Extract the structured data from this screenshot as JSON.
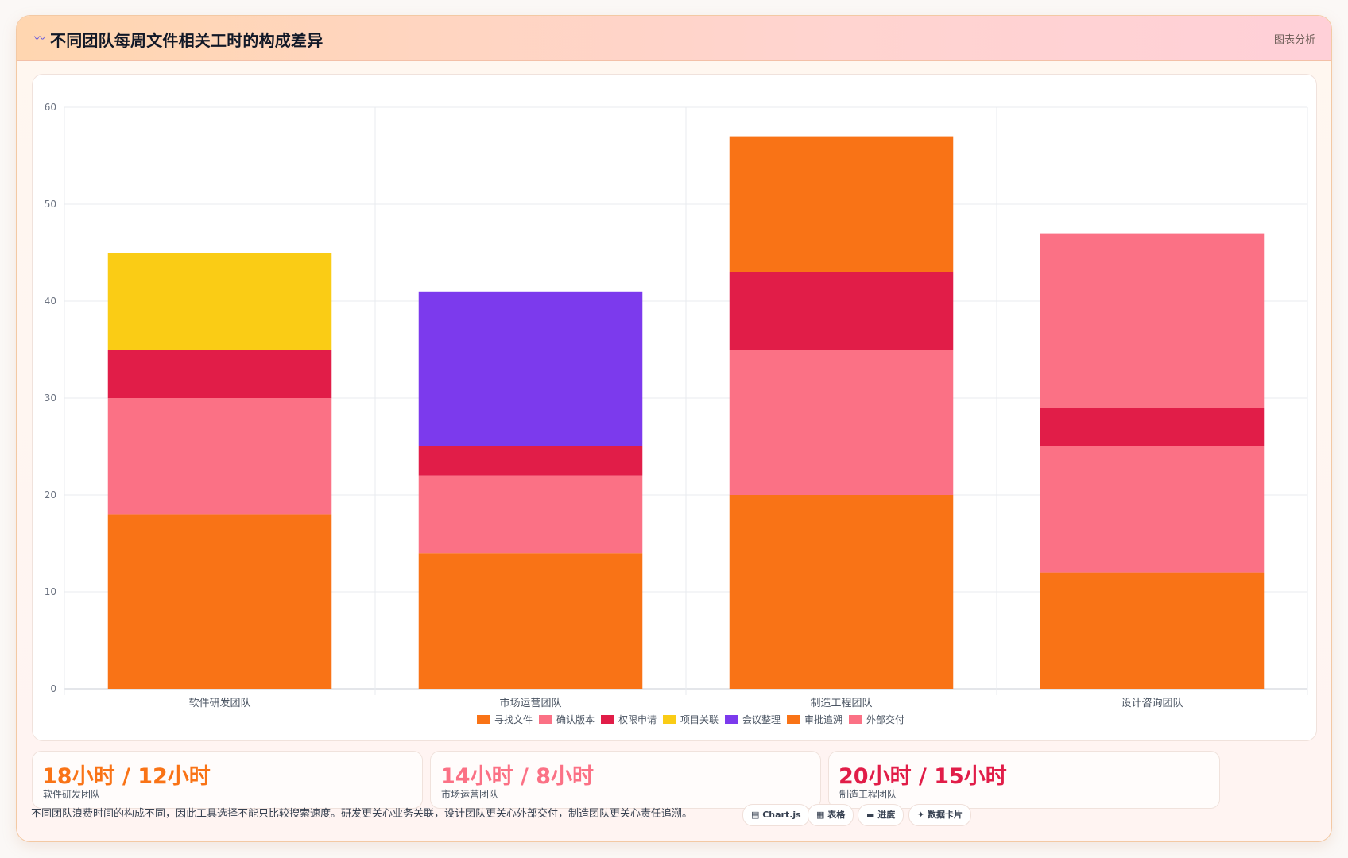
{
  "header": {
    "icon": "wave-icon",
    "title": "不同团队每周文件相关工时的构成差异",
    "tag": "图表分析"
  },
  "chart_data": {
    "type": "bar",
    "stacked": true,
    "categories": [
      "软件研发团队",
      "市场运营团队",
      "制造工程团队",
      "设计咨询团队"
    ],
    "ylim": [
      0,
      60
    ],
    "yticks": [
      0,
      10,
      20,
      30,
      40,
      50,
      60
    ],
    "legend_position": "bottom",
    "grid": true,
    "series": [
      {
        "name": "寻找文件",
        "color": "#f97316",
        "values": [
          18,
          14,
          20,
          12
        ]
      },
      {
        "name": "确认版本",
        "color": "#fb7185",
        "values": [
          12,
          8,
          15,
          13
        ]
      },
      {
        "name": "权限申请",
        "color": "#e11d48",
        "values": [
          5,
          3,
          8,
          4
        ]
      },
      {
        "name": "项目关联",
        "color": "#facc15",
        "values": [
          10,
          0,
          0,
          0
        ]
      },
      {
        "name": "会议整理",
        "color": "#7c3aed",
        "values": [
          0,
          16,
          0,
          0
        ]
      },
      {
        "name": "审批追溯",
        "color": "#f97316",
        "values": [
          0,
          0,
          14,
          0
        ]
      },
      {
        "name": "外部交付",
        "color": "#fb7185",
        "values": [
          0,
          0,
          0,
          18
        ]
      }
    ]
  },
  "stats": [
    {
      "value": "18小时 / 12小时",
      "label": "软件研发团队",
      "color": "#f97316"
    },
    {
      "value": "14小时 / 8小时",
      "label": "市场运营团队",
      "color": "#fb7185"
    },
    {
      "value": "20小时 / 15小时",
      "label": "制造工程团队",
      "color": "#e11d48"
    }
  ],
  "note": "不同团队浪费时间的构成不同，因此工具选择不能只比较搜索速度。研发更关心业务关联，设计团队更关心外部交付，制造团队更关心责任追溯。",
  "pills": [
    {
      "label": "▤ Chart.js",
      "icon": "chart-icon"
    },
    {
      "label": "▦ 表格",
      "icon": "table-icon"
    },
    {
      "label": "▬ 进度",
      "icon": "progress-icon"
    },
    {
      "label": "✦ 数据卡片",
      "icon": "card-icon"
    }
  ]
}
